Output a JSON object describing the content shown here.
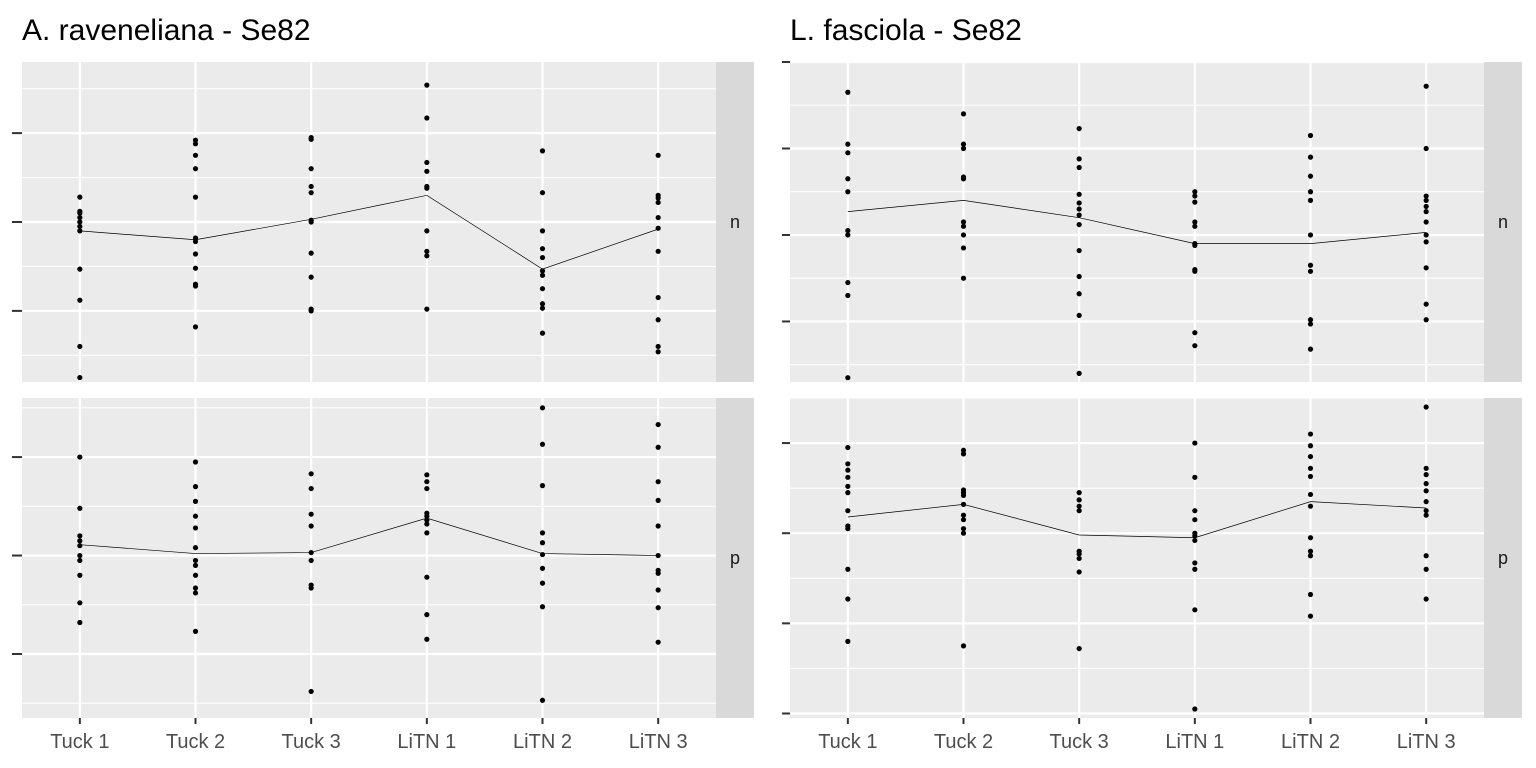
{
  "chart_data": [
    {
      "type": "scatter",
      "title": "A. raveneliana - Se82",
      "xlabel": "",
      "ylabel": "",
      "categories": [
        "Tuck 1",
        "Tuck 2",
        "Tuck 3",
        "LiTN 1",
        "LiTN 2",
        "LiTN 3"
      ],
      "facets": [
        {
          "strip": "n",
          "ylim": [
            -1.8,
            1.8
          ],
          "mean_line": [
            -0.1,
            -0.2,
            0.03,
            0.3,
            -0.53,
            -0.08
          ],
          "points": [
            [
              0.28,
              0.12,
              0.1,
              0.05,
              0.0,
              -0.05,
              -0.1,
              -0.53,
              -0.88,
              -1.4,
              -1.75
            ],
            [
              0.92,
              0.88,
              0.75,
              0.6,
              0.28,
              -0.18,
              -0.22,
              -0.36,
              -0.52,
              -0.7,
              -0.72,
              -1.18
            ],
            [
              0.95,
              0.93,
              0.6,
              0.4,
              0.33,
              0.02,
              0.0,
              -0.35,
              -0.62,
              -0.98,
              -1.0
            ],
            [
              1.54,
              1.17,
              0.67,
              0.57,
              0.4,
              0.38,
              -0.1,
              -0.33,
              -0.38,
              -0.98
            ],
            [
              0.8,
              0.33,
              -0.1,
              -0.3,
              -0.4,
              -0.55,
              -0.6,
              -0.75,
              -0.92,
              -0.97,
              -1.25
            ],
            [
              0.75,
              0.3,
              0.27,
              0.22,
              0.05,
              -0.07,
              -0.33,
              -0.85,
              -1.1,
              -1.4,
              -1.46
            ]
          ]
        },
        {
          "strip": "p",
          "ylim": [
            -1.65,
            1.6
          ],
          "mean_line": [
            0.11,
            0.02,
            0.03,
            0.38,
            0.02,
            0.0
          ],
          "points": [
            [
              1.0,
              0.48,
              0.2,
              0.15,
              0.1,
              0.0,
              -0.05,
              -0.2,
              -0.48,
              -0.68
            ],
            [
              0.95,
              0.7,
              0.55,
              0.4,
              0.28,
              0.08,
              -0.05,
              -0.1,
              -0.2,
              -0.33,
              -0.38,
              -0.77
            ],
            [
              0.83,
              0.68,
              0.42,
              0.3,
              0.03,
              -0.05,
              -0.3,
              -0.33,
              -1.38
            ],
            [
              0.82,
              0.75,
              0.68,
              0.43,
              0.4,
              0.36,
              0.32,
              0.23,
              -0.22,
              -0.6,
              -0.85
            ],
            [
              1.5,
              1.13,
              0.71,
              0.23,
              0.13,
              0.01,
              -0.13,
              -0.28,
              -0.52,
              -1.47
            ],
            [
              1.33,
              1.1,
              0.75,
              0.56,
              0.3,
              0.0,
              -0.15,
              -0.18,
              -0.35,
              -0.53,
              -0.88
            ]
          ]
        }
      ]
    },
    {
      "type": "scatter",
      "title": "L. fasciola - Se82",
      "xlabel": "",
      "ylabel": "",
      "categories": [
        "Tuck 1",
        "Tuck 2",
        "Tuck 3",
        "LiTN 1",
        "LiTN 2",
        "LiTN 3"
      ],
      "facets": [
        {
          "strip": "n",
          "ylim": [
            -1.7,
            2.0
          ],
          "mean_line": [
            0.27,
            0.4,
            0.2,
            -0.1,
            -0.1,
            0.03
          ],
          "points": [
            [
              1.65,
              1.05,
              0.95,
              0.65,
              0.5,
              0.05,
              0.0,
              -0.55,
              -0.7,
              -1.65
            ],
            [
              1.4,
              1.05,
              1.0,
              0.67,
              0.65,
              0.15,
              0.1,
              0.0,
              -0.15,
              -0.5
            ],
            [
              1.23,
              0.88,
              0.78,
              0.47,
              0.37,
              0.3,
              0.23,
              0.12,
              -0.18,
              -0.48,
              -0.68,
              -0.93,
              -1.6
            ],
            [
              0.5,
              0.45,
              0.38,
              0.15,
              0.1,
              -0.1,
              -0.12,
              -0.4,
              -0.42,
              -1.13,
              -1.28
            ],
            [
              1.15,
              0.9,
              0.68,
              0.5,
              0.4,
              0.0,
              -0.35,
              -0.42,
              -0.98,
              -1.03,
              -1.32
            ],
            [
              1.72,
              1.0,
              0.45,
              0.4,
              0.33,
              0.27,
              0.15,
              0.0,
              -0.08,
              -0.38,
              -0.8,
              -0.98
            ]
          ]
        },
        {
          "strip": "p",
          "ylim": [
            -2.05,
            1.5
          ],
          "mean_line": [
            0.18,
            0.32,
            -0.02,
            -0.05,
            0.35,
            0.28
          ],
          "points": [
            [
              0.95,
              0.77,
              0.7,
              0.62,
              0.52,
              0.45,
              0.25,
              0.08,
              0.05,
              -0.4,
              -0.73,
              -1.2
            ],
            [
              0.92,
              0.88,
              0.48,
              0.45,
              0.42,
              0.32,
              0.2,
              0.15,
              0.05,
              0.0,
              -1.25
            ],
            [
              0.45,
              0.37,
              0.3,
              0.25,
              -0.2,
              -0.23,
              -0.28,
              -0.43,
              -1.28
            ],
            [
              1.0,
              0.62,
              0.25,
              0.15,
              0.0,
              -0.03,
              -0.08,
              -0.33,
              -0.4,
              -0.85,
              -1.95
            ],
            [
              1.1,
              0.97,
              0.85,
              0.72,
              0.63,
              0.43,
              0.3,
              -0.05,
              -0.2,
              -0.25,
              -0.68,
              -0.92
            ],
            [
              1.4,
              0.72,
              0.65,
              0.55,
              0.47,
              0.35,
              0.25,
              0.2,
              -0.25,
              -0.4,
              -0.73
            ]
          ]
        }
      ]
    }
  ]
}
